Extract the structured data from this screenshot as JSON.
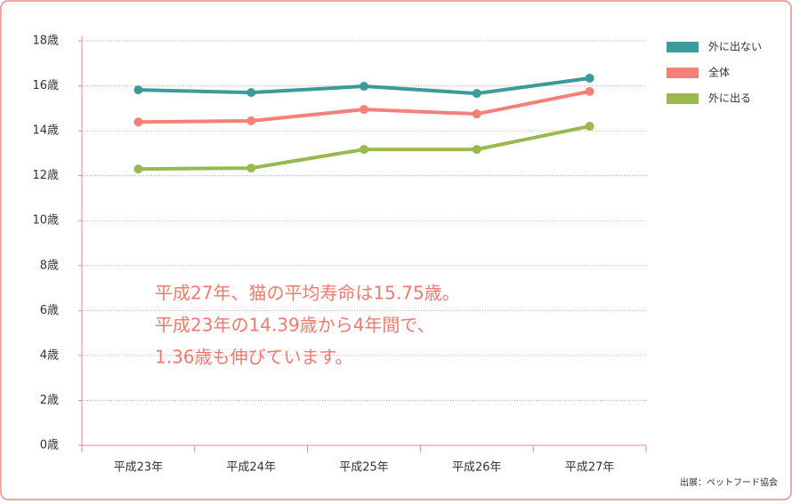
{
  "chart_data": {
    "type": "line",
    "categories": [
      "平成23年",
      "平成24年",
      "平成25年",
      "平成26年",
      "平成27年"
    ],
    "series": [
      {
        "name": "外に出ない",
        "color": "#3b9b9b",
        "values": [
          15.82,
          15.7,
          15.98,
          15.66,
          16.34
        ]
      },
      {
        "name": "全体",
        "color": "#f5807a",
        "values": [
          14.39,
          14.44,
          14.95,
          14.75,
          15.75
        ]
      },
      {
        "name": "外に出る",
        "color": "#99b94e",
        "values": [
          12.3,
          12.34,
          13.17,
          13.17,
          14.2
        ]
      }
    ],
    "ylim": [
      0,
      18
    ],
    "yticks": [
      {
        "value": 0,
        "label": "0歳"
      },
      {
        "value": 2,
        "label": "2歳"
      },
      {
        "value": 4,
        "label": "4歳"
      },
      {
        "value": 6,
        "label": "6歳"
      },
      {
        "value": 8,
        "label": "8歳"
      },
      {
        "value": 10,
        "label": "10歳"
      },
      {
        "value": 12,
        "label": "12歳"
      },
      {
        "value": 14,
        "label": "14歳"
      },
      {
        "value": 16,
        "label": "16歳"
      },
      {
        "value": 18,
        "label": "18歳"
      }
    ],
    "grid": true,
    "legend": "top-right",
    "annotation": [
      "平成27年、猫の平均寿命は15.75歳。",
      "平成23年の14.39歳から4年間で、",
      "1.36歳も伸びています。"
    ],
    "source": "出展：ペットフード協会"
  }
}
